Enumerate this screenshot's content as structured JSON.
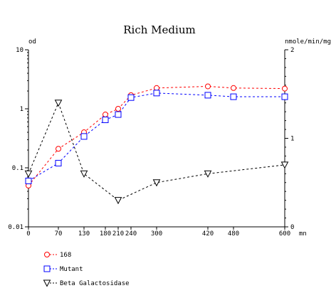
{
  "chart_data": {
    "type": "line",
    "title": "Rich Medium",
    "xlabel": "mn",
    "ylabel_left": "od",
    "ylabel_right": "nmole/min/mg",
    "left_axis": {
      "scale": "log",
      "range": [
        0.01,
        10
      ],
      "ticks": [
        "0.01",
        "0.1",
        "1",
        "10"
      ]
    },
    "right_axis": {
      "scale": "linear",
      "range": [
        0,
        2
      ],
      "ticks": [
        "0",
        "1",
        "2"
      ]
    },
    "x_range": [
      0,
      600
    ],
    "x_ticks": [
      0,
      70,
      130,
      180,
      210,
      240,
      300,
      420,
      480,
      600
    ],
    "x_tick_labels": [
      "0",
      "70",
      "130",
      "180",
      "210",
      "240",
      "300",
      "420",
      "480",
      "600"
    ],
    "grid": false,
    "legend_position": "bottom-left",
    "series": [
      {
        "name": "168",
        "axis": "left",
        "marker": "circle",
        "color": "#ff0000",
        "x": [
          0,
          70,
          130,
          180,
          210,
          240,
          300,
          420,
          480,
          600
        ],
        "y": [
          0.05,
          0.21,
          0.4,
          0.8,
          1.0,
          1.7,
          2.25,
          2.4,
          2.25,
          2.2
        ]
      },
      {
        "name": "Mutant",
        "axis": "left",
        "marker": "square",
        "color": "#0000ff",
        "x": [
          0,
          70,
          130,
          180,
          210,
          240,
          300,
          420,
          480,
          600
        ],
        "y": [
          0.06,
          0.12,
          0.34,
          0.65,
          0.8,
          1.55,
          1.85,
          1.7,
          1.6,
          1.6
        ]
      },
      {
        "name": "Beta Galactosidase",
        "axis": "right",
        "marker": "triangle-down",
        "color": "#000000",
        "x": [
          0,
          70,
          130,
          210,
          300,
          420,
          600
        ],
        "y": [
          0.6,
          1.4,
          0.6,
          0.3,
          0.5,
          0.6,
          0.7
        ]
      }
    ]
  }
}
